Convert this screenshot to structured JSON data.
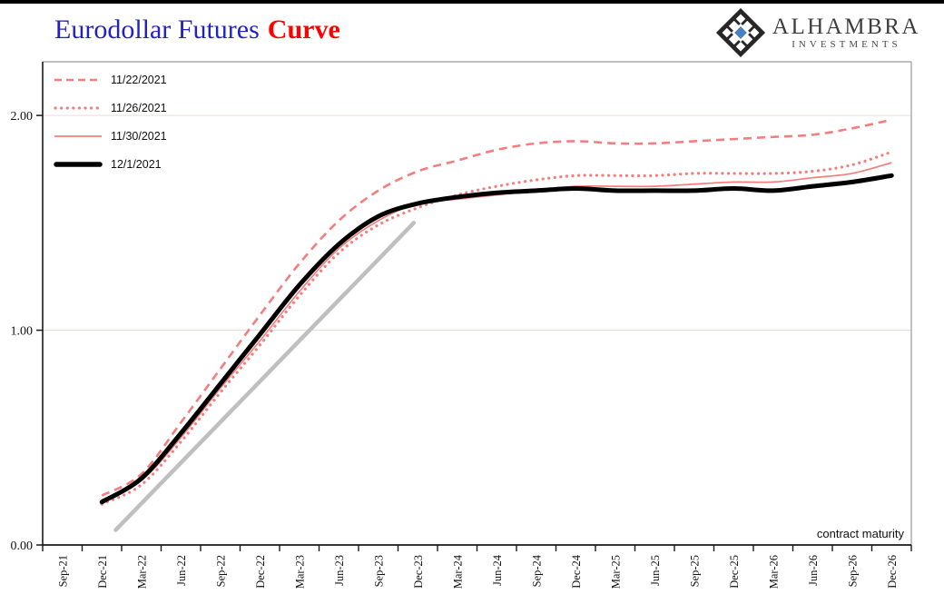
{
  "header": {
    "title_main": "Eurodollar Futures",
    "title_accent": "Curve",
    "title_main_color": "#2222c4",
    "title_accent_color": "#fe0000",
    "top_bar_color": "#000000"
  },
  "logo": {
    "name": "ALHAMBRA",
    "subtitle": "INVESTMENTS",
    "icon": "alhambra-tile-diamond-icon",
    "icon_accent_color": "#4a7fc1",
    "text_color": "#3d3d3d"
  },
  "chart_data": {
    "type": "line",
    "title": "Eurodollar Futures Curve",
    "xlabel": "contract maturity",
    "ylabel": "",
    "ylim": [
      0,
      2.25
    ],
    "ytick_values": [
      0,
      1,
      2
    ],
    "ytick_labels": [
      "0.00",
      "1.00",
      "2.00"
    ],
    "grid": "faint horizontal gridlines at 1.00 and 2.00",
    "legend_position": "top-left inside plot area",
    "categories": [
      "Sep-21",
      "Dec-21",
      "Mar-22",
      "Jun-22",
      "Sep-22",
      "Dec-22",
      "Mar-23",
      "Jun-23",
      "Sep-23",
      "Dec-23",
      "Mar-24",
      "Jun-24",
      "Sep-24",
      "Dec-24",
      "Mar-25",
      "Jun-25",
      "Sep-25",
      "Dec-25",
      "Mar-26",
      "Jun-26",
      "Sep-26",
      "Dec-26"
    ],
    "series": [
      {
        "name": "11/22/2021",
        "style": "dashed",
        "color": "#f47e7e",
        "start_index": 1,
        "values": [
          0.23,
          0.33,
          0.57,
          0.82,
          1.07,
          1.31,
          1.51,
          1.65,
          1.74,
          1.79,
          1.84,
          1.87,
          1.88,
          1.87,
          1.87,
          1.88,
          1.89,
          1.9,
          1.91,
          1.94,
          1.98
        ]
      },
      {
        "name": "11/26/2021",
        "style": "dotted",
        "color": "#f47e7e",
        "start_index": 1,
        "values": [
          0.19,
          0.28,
          0.48,
          0.71,
          0.93,
          1.16,
          1.36,
          1.49,
          1.57,
          1.63,
          1.67,
          1.7,
          1.72,
          1.72,
          1.72,
          1.73,
          1.73,
          1.73,
          1.74,
          1.77,
          1.83
        ]
      },
      {
        "name": "11/30/2021",
        "style": "solid-thin",
        "color": "#f47e7e",
        "start_index": 1,
        "values": [
          0.21,
          0.3,
          0.5,
          0.73,
          0.95,
          1.18,
          1.38,
          1.51,
          1.59,
          1.61,
          1.63,
          1.65,
          1.67,
          1.67,
          1.67,
          1.68,
          1.69,
          1.69,
          1.71,
          1.73,
          1.78
        ]
      },
      {
        "name": "12/1/2021",
        "style": "solid-thick",
        "color": "#000000",
        "start_index": 1,
        "values": [
          0.2,
          0.31,
          0.52,
          0.75,
          0.98,
          1.21,
          1.4,
          1.53,
          1.59,
          1.62,
          1.64,
          1.65,
          1.66,
          1.65,
          1.65,
          1.65,
          1.66,
          1.65,
          1.67,
          1.69,
          1.72
        ]
      }
    ],
    "trend_line": {
      "color": "#bfbfbf",
      "from_index": 1.35,
      "from_value": 0.07,
      "to_index": 8.9,
      "to_value": 1.5
    },
    "annotations": [
      {
        "text": "contract maturity",
        "position": "inside bottom-right"
      }
    ]
  }
}
